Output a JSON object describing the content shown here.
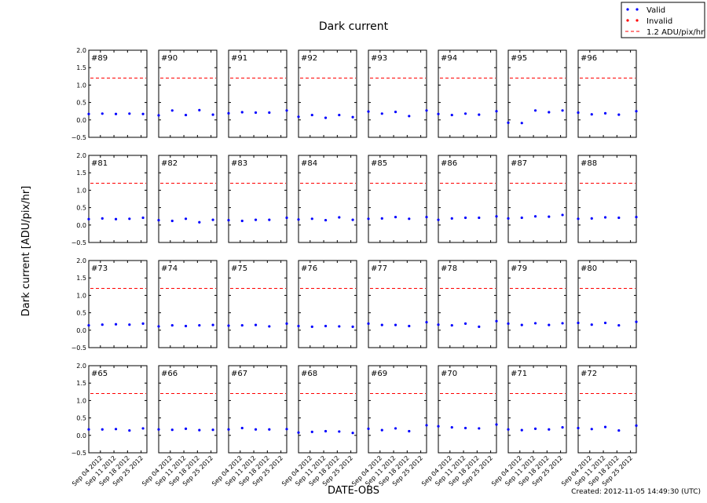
{
  "title": "Dark current",
  "xlabel": "DATE-OBS",
  "ylabel": "Dark current [ADU/pix/hr]",
  "footer": "Created: 2012-11-05 14:49:30 (UTC)",
  "legend": {
    "placement": "top-right",
    "items": [
      {
        "label": "Valid",
        "color": "#0000ff",
        "style": "marker"
      },
      {
        "label": "Invalid",
        "color": "#ff0000",
        "style": "marker"
      },
      {
        "label": "1.2 ADU/pix/hr",
        "color": "#ff0000",
        "style": "dashed-line"
      }
    ]
  },
  "chart_data": {
    "type": "scatter",
    "layout": {
      "rows": 4,
      "cols": 8
    },
    "ylim": [
      -0.5,
      2.0
    ],
    "yticks": [
      "2.0",
      "1.5",
      "1.0",
      "0.5",
      "0.0",
      "−0.5"
    ],
    "xlim": [
      "2012-08-29",
      "2012-09-28"
    ],
    "xticks": [
      {
        "date": "2012-09-04",
        "label": "Sep 04 2012"
      },
      {
        "date": "2012-09-11",
        "label": "Sep 11 2012"
      },
      {
        "date": "2012-09-18",
        "label": "Sep 18 2012"
      },
      {
        "date": "2012-09-25",
        "label": "Sep 25 2012"
      }
    ],
    "threshold": 1.2,
    "dates": [
      "2012-08-29",
      "2012-09-05",
      "2012-09-12",
      "2012-09-19",
      "2012-09-26",
      "2012-09-28"
    ],
    "panels": [
      {
        "label": "#89",
        "valid": [
          0.17,
          0.18,
          0.17,
          0.18,
          0.17,
          null
        ]
      },
      {
        "label": "#90",
        "valid": [
          0.13,
          0.27,
          0.14,
          0.28,
          0.15,
          null
        ]
      },
      {
        "label": "#91",
        "valid": [
          0.19,
          0.22,
          0.21,
          0.21,
          null,
          0.27
        ]
      },
      {
        "label": "#92",
        "valid": [
          0.09,
          0.14,
          0.06,
          0.14,
          0.08,
          null
        ]
      },
      {
        "label": "#93",
        "valid": [
          0.24,
          0.18,
          0.23,
          0.11,
          null,
          0.27
        ]
      },
      {
        "label": "#94",
        "valid": [
          0.17,
          0.14,
          0.18,
          0.15,
          null,
          0.25
        ]
      },
      {
        "label": "#95",
        "valid": [
          -0.08,
          -0.09,
          0.27,
          0.22,
          0.27,
          null
        ]
      },
      {
        "label": "#96",
        "valid": [
          0.21,
          0.16,
          0.19,
          0.15,
          null,
          0.25
        ]
      },
      {
        "label": "#81",
        "valid": [
          0.17,
          0.19,
          0.17,
          0.18,
          0.21,
          null
        ]
      },
      {
        "label": "#82",
        "valid": [
          0.14,
          0.12,
          0.18,
          0.08,
          0.15,
          null
        ]
      },
      {
        "label": "#83",
        "valid": [
          0.14,
          0.12,
          0.15,
          0.15,
          null,
          0.21
        ]
      },
      {
        "label": "#84",
        "valid": [
          0.16,
          0.18,
          0.14,
          0.22,
          0.15,
          null
        ]
      },
      {
        "label": "#85",
        "valid": [
          0.18,
          0.19,
          0.23,
          0.18,
          null,
          0.23
        ]
      },
      {
        "label": "#86",
        "valid": [
          0.15,
          0.19,
          0.21,
          0.21,
          null,
          0.25
        ]
      },
      {
        "label": "#87",
        "valid": [
          0.19,
          0.21,
          0.25,
          0.24,
          0.29,
          null
        ]
      },
      {
        "label": "#88",
        "valid": [
          0.18,
          0.19,
          0.22,
          0.21,
          null,
          0.23
        ]
      },
      {
        "label": "#73",
        "valid": [
          0.14,
          0.16,
          0.17,
          0.16,
          0.19,
          null
        ]
      },
      {
        "label": "#74",
        "valid": [
          0.11,
          0.14,
          0.12,
          0.14,
          0.15,
          null
        ]
      },
      {
        "label": "#75",
        "valid": [
          0.13,
          0.14,
          0.15,
          0.11,
          null,
          0.19
        ]
      },
      {
        "label": "#76",
        "valid": [
          0.12,
          0.1,
          0.12,
          0.11,
          0.1,
          null
        ]
      },
      {
        "label": "#77",
        "valid": [
          0.19,
          0.15,
          0.15,
          0.12,
          null,
          0.23
        ]
      },
      {
        "label": "#78",
        "valid": [
          0.16,
          0.14,
          0.19,
          0.1,
          null,
          0.26
        ]
      },
      {
        "label": "#79",
        "valid": [
          0.19,
          0.15,
          0.2,
          0.15,
          0.2,
          null
        ]
      },
      {
        "label": "#80",
        "valid": [
          0.21,
          0.16,
          0.21,
          0.14,
          null,
          0.24
        ]
      },
      {
        "label": "#65",
        "valid": [
          0.17,
          0.17,
          0.18,
          0.14,
          0.2,
          null
        ]
      },
      {
        "label": "#66",
        "valid": [
          0.17,
          0.16,
          0.19,
          0.15,
          0.16,
          null
        ]
      },
      {
        "label": "#67",
        "valid": [
          0.17,
          0.21,
          0.17,
          0.17,
          null,
          0.18
        ]
      },
      {
        "label": "#68",
        "valid": [
          0.08,
          0.1,
          0.12,
          0.11,
          0.07,
          null
        ]
      },
      {
        "label": "#69",
        "valid": [
          0.19,
          0.15,
          0.2,
          0.12,
          null,
          0.29
        ]
      },
      {
        "label": "#70",
        "valid": [
          0.26,
          0.23,
          0.21,
          0.2,
          null,
          0.31
        ]
      },
      {
        "label": "#71",
        "valid": [
          0.17,
          0.15,
          0.19,
          0.17,
          0.23,
          null
        ]
      },
      {
        "label": "#72",
        "valid": [
          0.21,
          0.18,
          0.24,
          0.14,
          null,
          0.28
        ]
      }
    ]
  }
}
